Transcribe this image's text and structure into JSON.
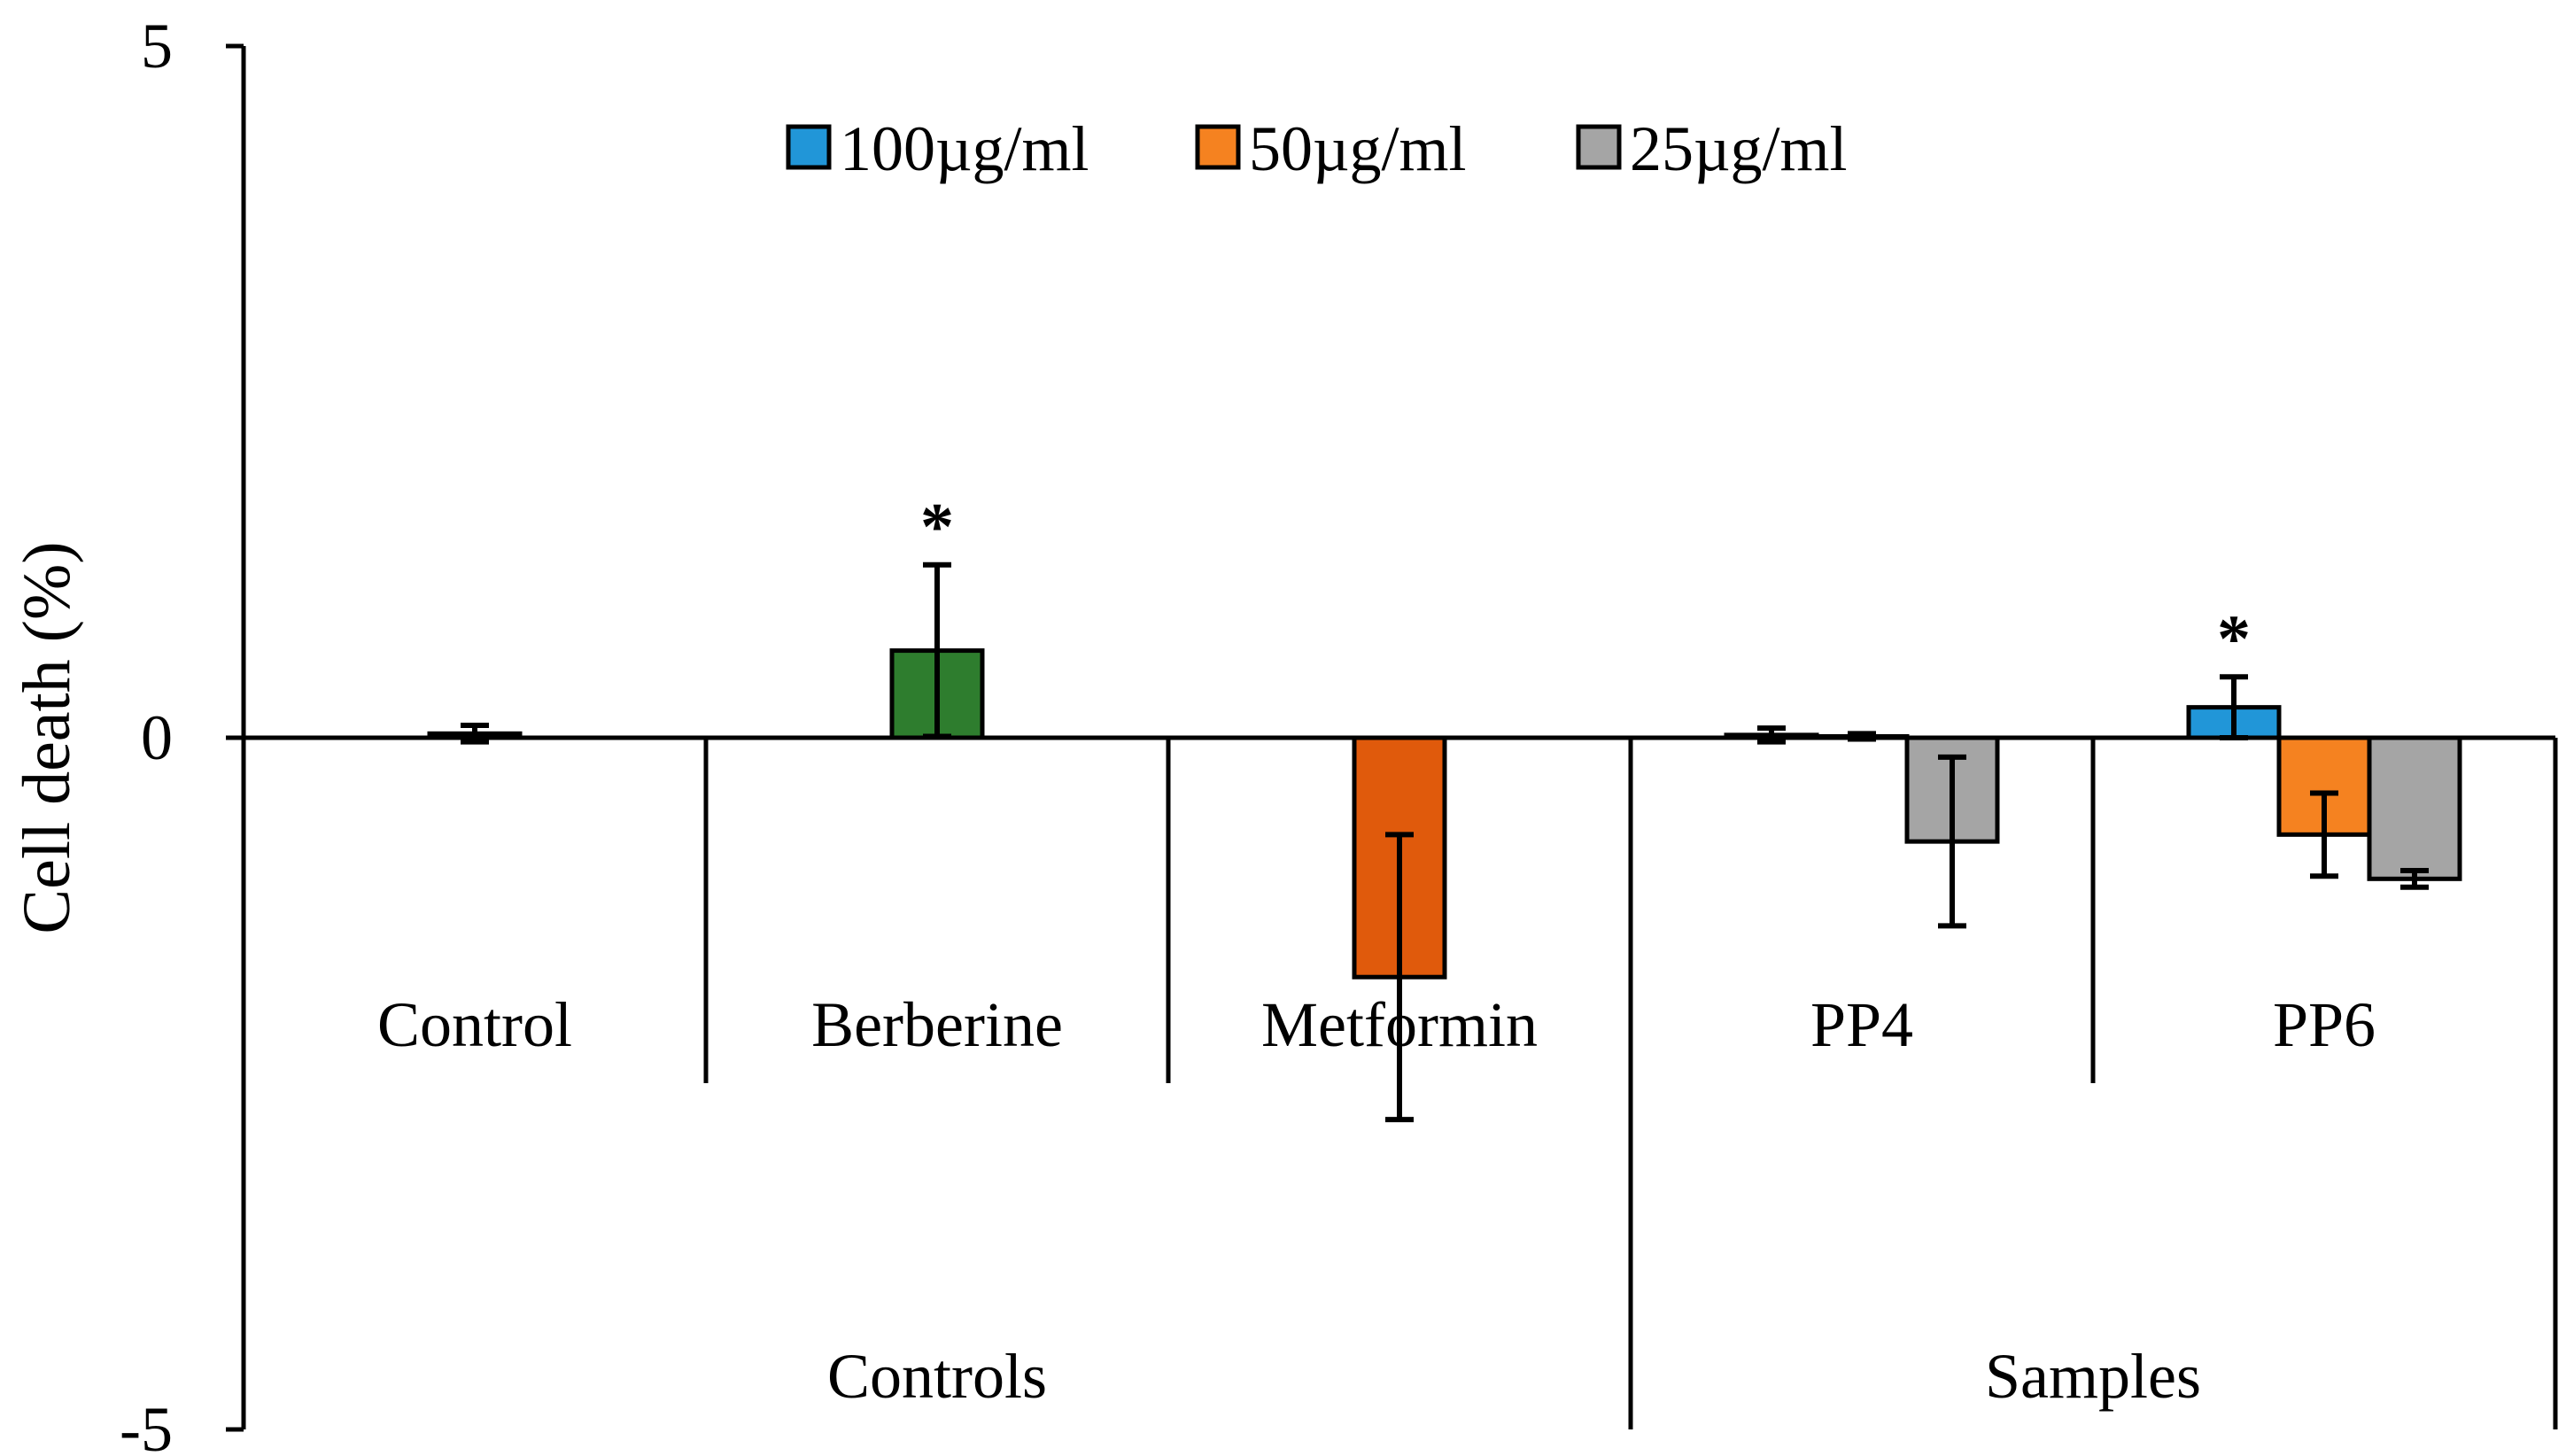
{
  "chart_data": {
    "type": "bar",
    "title": "",
    "ylabel": "Cell death (%)",
    "xlabel": "",
    "ylim": [
      -5,
      5
    ],
    "yticks": [
      5,
      0,
      -5
    ],
    "grid": false,
    "legend_position": "top-center",
    "legend": [
      {
        "label": "100µg/ml",
        "color": "#2196d8"
      },
      {
        "label": "50µg/ml",
        "color": "#f58220"
      },
      {
        "label": "25µg/ml",
        "color": "#a5a5a5"
      }
    ],
    "categories": [
      "Control",
      "Berberine",
      "Metformin",
      "PP4",
      "PP6"
    ],
    "groups": [
      {
        "label": "Controls",
        "categories": [
          "Control",
          "Berberine",
          "Metformin"
        ]
      },
      {
        "label": "Samples",
        "categories": [
          "PP4",
          "PP6"
        ]
      }
    ],
    "bars": [
      {
        "category": "Control",
        "series": "100µg/ml",
        "value": 0.03,
        "error": 0.06,
        "color": "#2196d8",
        "single": true
      },
      {
        "category": "Berberine",
        "series": "",
        "value": 0.63,
        "error": 0.62,
        "color": "#2e7d2e",
        "single": true,
        "annotation": "*"
      },
      {
        "category": "Metformin",
        "series": "",
        "value": -1.73,
        "error": 1.03,
        "color": "#e05a0c",
        "single": true
      },
      {
        "category": "PP4",
        "series": "100µg/ml",
        "value": 0.02,
        "error": 0.05,
        "color": "#2196d8"
      },
      {
        "category": "PP4",
        "series": "50µg/ml",
        "value": 0.01,
        "error": 0.02,
        "color": "#f58220"
      },
      {
        "category": "PP4",
        "series": "25µg/ml",
        "value": -0.75,
        "error": 0.61,
        "color": "#a5a5a5"
      },
      {
        "category": "PP6",
        "series": "100µg/ml",
        "value": 0.22,
        "error": 0.22,
        "color": "#2196d8",
        "annotation": "*"
      },
      {
        "category": "PP6",
        "series": "50µg/ml",
        "value": -0.7,
        "error": 0.3,
        "color": "#f58220"
      },
      {
        "category": "PP6",
        "series": "25µg/ml",
        "value": -1.02,
        "error": 0.06,
        "color": "#a5a5a5"
      }
    ]
  }
}
